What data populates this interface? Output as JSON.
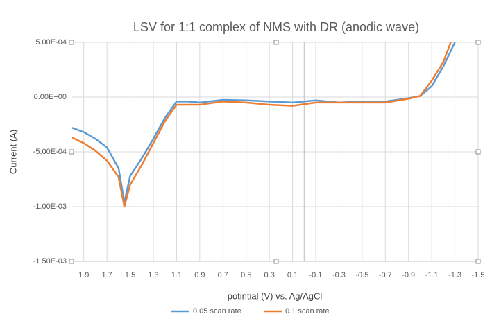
{
  "chart_data": {
    "type": "line",
    "title": "LSV for  1:1 complex of NMS with DR (anodic wave)",
    "x_label": "potintial (V) vs. Ag/AgCl",
    "y_label": "Current (A)",
    "x": [
      2.0,
      1.9,
      1.8,
      1.7,
      1.6,
      1.55,
      1.5,
      1.4,
      1.3,
      1.2,
      1.1,
      1.0,
      0.9,
      0.7,
      0.5,
      0.3,
      0.1,
      -0.1,
      -0.3,
      -0.5,
      -0.7,
      -0.9,
      -1.0,
      -1.1,
      -1.2,
      -1.3
    ],
    "series": [
      {
        "name": "0.05 scan rate",
        "color": "#5b9bd5",
        "values": [
          -0.00028,
          -0.00032,
          -0.00038,
          -0.00046,
          -0.00065,
          -0.00096,
          -0.00072,
          -0.00056,
          -0.00038,
          -0.00019,
          -4e-05,
          -4e-05,
          -5e-05,
          -2.5e-05,
          -3e-05,
          -4e-05,
          -5e-05,
          -3e-05,
          -5e-05,
          -4e-05,
          -4e-05,
          -1e-05,
          1e-05,
          0.0001,
          0.00028,
          0.0005
        ]
      },
      {
        "name": "0.1 scan rate",
        "color": "#ed7d31",
        "values": [
          -0.00037,
          -0.00042,
          -0.00049,
          -0.00058,
          -0.00073,
          -0.001,
          -0.0008,
          -0.00062,
          -0.00042,
          -0.00022,
          -7e-05,
          -7e-05,
          -7e-05,
          -4e-05,
          -5e-05,
          -7e-05,
          -8e-05,
          -5e-05,
          -5e-05,
          -5e-05,
          -5e-05,
          -1.5e-05,
          1e-05,
          0.00015,
          0.00032,
          0.0006
        ]
      }
    ],
    "xlim": [
      2.0,
      -1.5
    ],
    "xticks": [
      1.9,
      1.7,
      1.5,
      1.3,
      1.1,
      0.9,
      0.7,
      0.5,
      0.3,
      0.1,
      -0.1,
      -0.3,
      -0.5,
      -0.7,
      -0.9,
      -1.1,
      -1.3,
      -1.5
    ],
    "ylim": [
      -0.0015,
      0.0005
    ],
    "yticks": [
      {
        "value": 0.0005,
        "label": "5.00E-04"
      },
      {
        "value": 0,
        "label": "0.00E+00"
      },
      {
        "value": -0.0005,
        "label": "-5.00E-04"
      },
      {
        "value": -0.001,
        "label": "-1.00E-03"
      },
      {
        "value": -0.0015,
        "label": "-1.50E-03"
      }
    ],
    "grid": true,
    "legend": "bottom"
  }
}
